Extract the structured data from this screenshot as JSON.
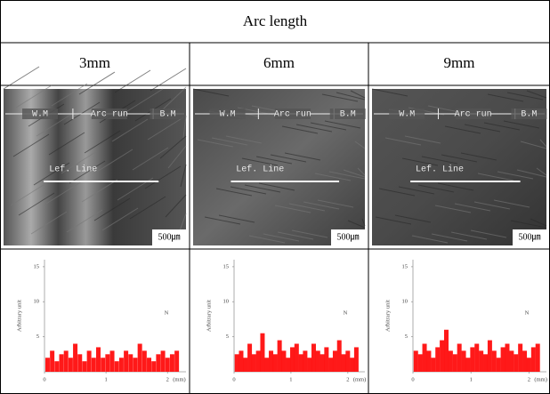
{
  "table": {
    "title": "Arc length",
    "columns": [
      "3mm",
      "6mm",
      "9mm"
    ]
  },
  "micrographs": [
    {
      "labels": [
        "W.M",
        "Arc run",
        "B.M"
      ],
      "line_label": "Lef. Line",
      "scale": "500㎛"
    },
    {
      "labels": [
        "W.M",
        "Arc run",
        "B.M"
      ],
      "line_label": "Lef. Line",
      "scale": "500㎛"
    },
    {
      "labels": [
        "W.M",
        "Arc run",
        "B.M"
      ],
      "line_label": "Lef. Line",
      "scale": "500㎛"
    }
  ],
  "chart_data": [
    {
      "type": "bar",
      "ylabel": "Arbitrary unit",
      "annotation": "N",
      "xunit": "(mm)",
      "color": "#ff0000",
      "xlim": [
        0,
        2.3
      ],
      "xticks": [
        0,
        1,
        2
      ],
      "ylim": [
        0,
        16
      ],
      "yticks": [
        5,
        10,
        15
      ],
      "x": [
        0.05,
        0.125,
        0.2,
        0.275,
        0.35,
        0.425,
        0.5,
        0.575,
        0.65,
        0.725,
        0.8,
        0.875,
        0.95,
        1.025,
        1.1,
        1.175,
        1.25,
        1.325,
        1.4,
        1.475,
        1.55,
        1.625,
        1.7,
        1.775,
        1.85,
        1.925,
        2,
        2.075,
        2.15
      ],
      "values": [
        2,
        3,
        1.5,
        2.5,
        3,
        2,
        4,
        2.5,
        1.5,
        3,
        2,
        3.5,
        2,
        2.5,
        3,
        1.5,
        2,
        3,
        2.5,
        2,
        4,
        3,
        2,
        1.5,
        2.5,
        3,
        2,
        2.5,
        3
      ]
    },
    {
      "type": "bar",
      "ylabel": "Arbitrary unit",
      "annotation": "N",
      "xunit": "(mm)",
      "color": "#ff0000",
      "xlim": [
        0,
        2.3
      ],
      "xticks": [
        0,
        1,
        2
      ],
      "ylim": [
        0,
        16
      ],
      "yticks": [
        5,
        10,
        15
      ],
      "x": [
        0.05,
        0.125,
        0.2,
        0.275,
        0.35,
        0.425,
        0.5,
        0.575,
        0.65,
        0.725,
        0.8,
        0.875,
        0.95,
        1.025,
        1.1,
        1.175,
        1.25,
        1.325,
        1.4,
        1.475,
        1.55,
        1.625,
        1.7,
        1.775,
        1.85,
        1.925,
        2,
        2.075,
        2.15
      ],
      "values": [
        2.5,
        3,
        2,
        4,
        2.5,
        3,
        5.5,
        2,
        3,
        2.5,
        4.5,
        3,
        2,
        3.5,
        4,
        2.5,
        3,
        2,
        4,
        3,
        2.5,
        3.5,
        2,
        3,
        4.5,
        2.5,
        3,
        2,
        3.5
      ]
    },
    {
      "type": "bar",
      "ylabel": "Arbitrary unit",
      "annotation": "N",
      "xunit": "(mm)",
      "color": "#ff0000",
      "xlim": [
        0,
        2.3
      ],
      "xticks": [
        0,
        1,
        2
      ],
      "ylim": [
        0,
        16
      ],
      "yticks": [
        5,
        10,
        15
      ],
      "x": [
        0.05,
        0.125,
        0.2,
        0.275,
        0.35,
        0.425,
        0.5,
        0.575,
        0.65,
        0.725,
        0.8,
        0.875,
        0.95,
        1.025,
        1.1,
        1.175,
        1.25,
        1.325,
        1.4,
        1.475,
        1.55,
        1.625,
        1.7,
        1.775,
        1.85,
        1.925,
        2,
        2.075,
        2.15
      ],
      "values": [
        3,
        2.5,
        4,
        3,
        2,
        3.5,
        4.5,
        6,
        3,
        2.5,
        4,
        3,
        2,
        3.5,
        4,
        3,
        2.5,
        4.5,
        3,
        2,
        3.5,
        4,
        3,
        2.5,
        4,
        3,
        2,
        3.5,
        4
      ]
    }
  ]
}
